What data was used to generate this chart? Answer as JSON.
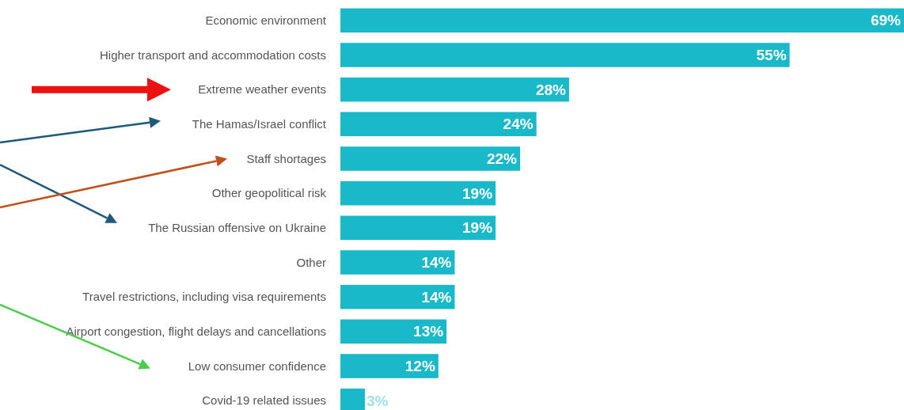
{
  "chart_data": {
    "type": "bar",
    "orientation": "horizontal",
    "data_labels": true,
    "color": "#1ab9c9",
    "categories": [
      "Economic environment",
      "Higher transport and accommodation costs",
      "Extreme weather events",
      "The Hamas/Israel conflict",
      "Staff shortages",
      "Other geopolitical risk",
      "The Russian offensive on Ukraine",
      "Other",
      "Travel restrictions, including visa requirements",
      "Airport congestion, flight delays and cancellations",
      "Low consumer confidence",
      "Covid-19 related issues"
    ],
    "values": [
      69,
      55,
      28,
      24,
      22,
      19,
      19,
      14,
      14,
      13,
      12,
      3
    ],
    "value_labels": [
      "69%",
      "55%",
      "28%",
      "24%",
      "22%",
      "19%",
      "19%",
      "14%",
      "14%",
      "13%",
      "12%",
      "3%"
    ]
  }
}
